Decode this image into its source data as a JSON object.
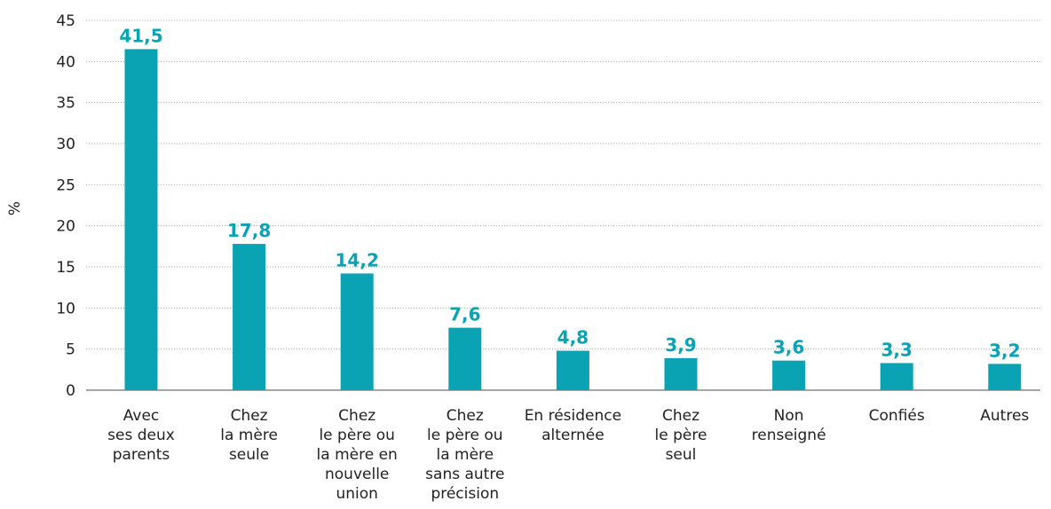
{
  "chart_data": {
    "type": "bar",
    "y_label": "%",
    "categories": [
      "Avec\nses deux\nparents",
      "Chez\nla mère\nseule",
      "Chez\nle père ou\nla mère en\nnouvelle\nunion",
      "Chez\nle père ou\nla mère\nsans autre\nprécision",
      "En résidence\nalternée",
      "Chez\nle père\nseul",
      "Non\nrenseigné",
      "Confiés",
      "Autres"
    ],
    "values": [
      41.5,
      17.8,
      14.2,
      7.6,
      4.8,
      3.9,
      3.6,
      3.3,
      3.2
    ],
    "value_labels": [
      "41,5",
      "17,8",
      "14,2",
      "7,6",
      "4,8",
      "3,9",
      "3,6",
      "3,3",
      "3,2"
    ],
    "color": "#0aa3b3",
    "ylim": [
      0,
      45
    ],
    "yticks": [
      0,
      5,
      10,
      15,
      20,
      25,
      30,
      35,
      40,
      45
    ],
    "grid": true
  }
}
